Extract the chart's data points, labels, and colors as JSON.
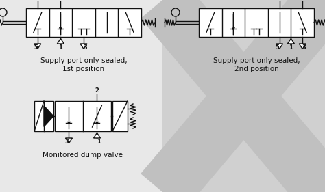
{
  "bg_left": "#e0e0e0",
  "bg_right_x": "#d8d8d8",
  "line_color": "#111111",
  "text_color": "#111111",
  "title1": "Supply port only sealed,\n1st position",
  "title2": "Supply port only sealed,\n2nd position",
  "title3": "Monitored dump valve",
  "font_size": 7.5,
  "lw": 1.0
}
